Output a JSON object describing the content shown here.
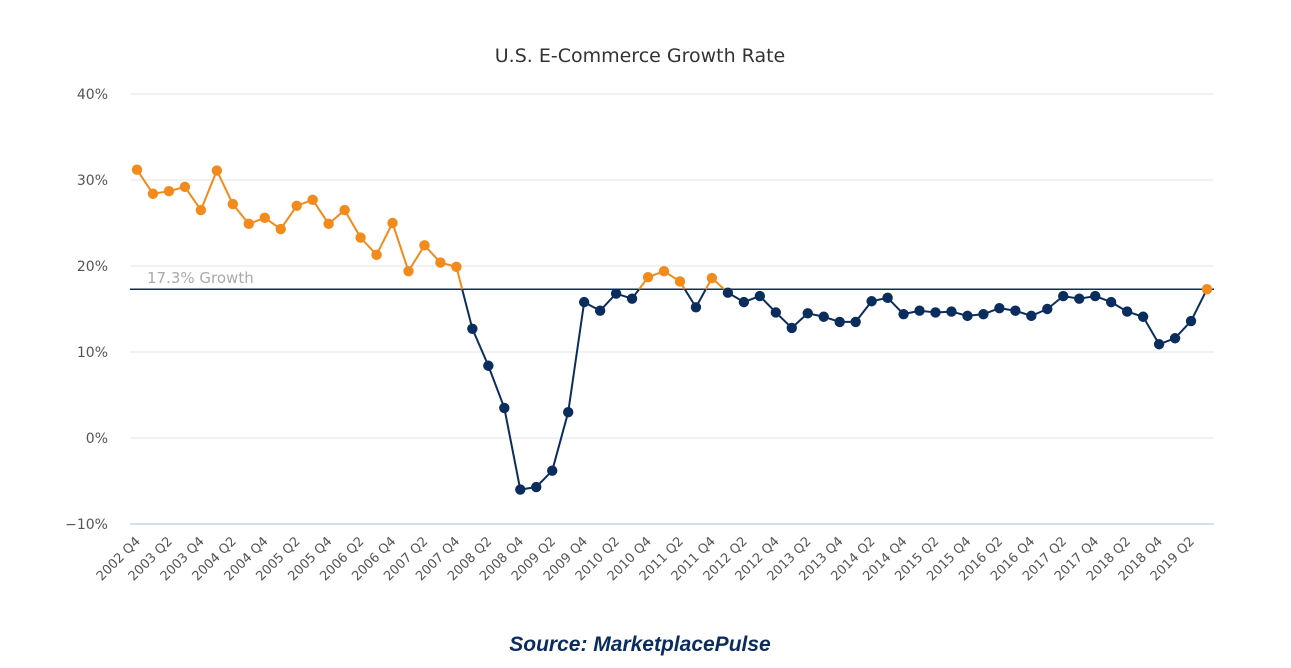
{
  "chart_data": {
    "type": "line",
    "title": "U.S. E-Commerce Growth Rate",
    "source": "Source: MarketplacePulse",
    "ylim": [
      -10,
      40
    ],
    "yticks": [
      -10,
      0,
      10,
      20,
      30,
      40
    ],
    "ytick_labels": [
      "−10%",
      "0%",
      "10%",
      "20%",
      "30%",
      "40%"
    ],
    "x_tick_labels": [
      "2002 Q4",
      "2003 Q2",
      "2003 Q4",
      "2004 Q2",
      "2004 Q4",
      "2005 Q2",
      "2005 Q4",
      "2006 Q2",
      "2006 Q4",
      "2007 Q2",
      "2007 Q4",
      "2008 Q2",
      "2008 Q4",
      "2009 Q2",
      "2009 Q4",
      "2010 Q2",
      "2010 Q4",
      "2011 Q2",
      "2011 Q4",
      "2012 Q2",
      "2012 Q4",
      "2013 Q2",
      "2013 Q4",
      "2014 Q2",
      "2014 Q4",
      "2015 Q2",
      "2015 Q4",
      "2016 Q2",
      "2016 Q4",
      "2017 Q2",
      "2017 Q4",
      "2018 Q2",
      "2018 Q4",
      "2019 Q2"
    ],
    "x_start": "2002 Q4",
    "x_end": "2019 Q3",
    "reference_line": {
      "value": 17.3,
      "label": "17.3% Growth"
    },
    "colors": {
      "above": "#f28a1c",
      "below": "#0b2d5e",
      "grid": "#e6e6e6",
      "axis": "#c5d2e8"
    },
    "values": [
      31.2,
      28.4,
      28.7,
      29.2,
      26.5,
      31.1,
      27.2,
      24.9,
      25.6,
      24.3,
      27.0,
      27.7,
      24.9,
      26.5,
      23.3,
      21.3,
      25.0,
      19.4,
      22.4,
      20.4,
      19.9,
      12.7,
      8.4,
      3.5,
      -6.0,
      -5.7,
      -3.8,
      3.0,
      15.8,
      14.8,
      16.8,
      16.2,
      18.7,
      19.4,
      18.2,
      15.2,
      18.6,
      16.9,
      15.8,
      16.5,
      14.6,
      12.8,
      14.5,
      14.1,
      13.5,
      13.5,
      15.9,
      16.3,
      14.4,
      14.8,
      14.6,
      14.7,
      14.2,
      14.4,
      15.1,
      14.8,
      14.2,
      15.0,
      16.5,
      16.2,
      16.5,
      15.8,
      14.7,
      14.1,
      10.9,
      11.6,
      13.6,
      17.3
    ]
  }
}
